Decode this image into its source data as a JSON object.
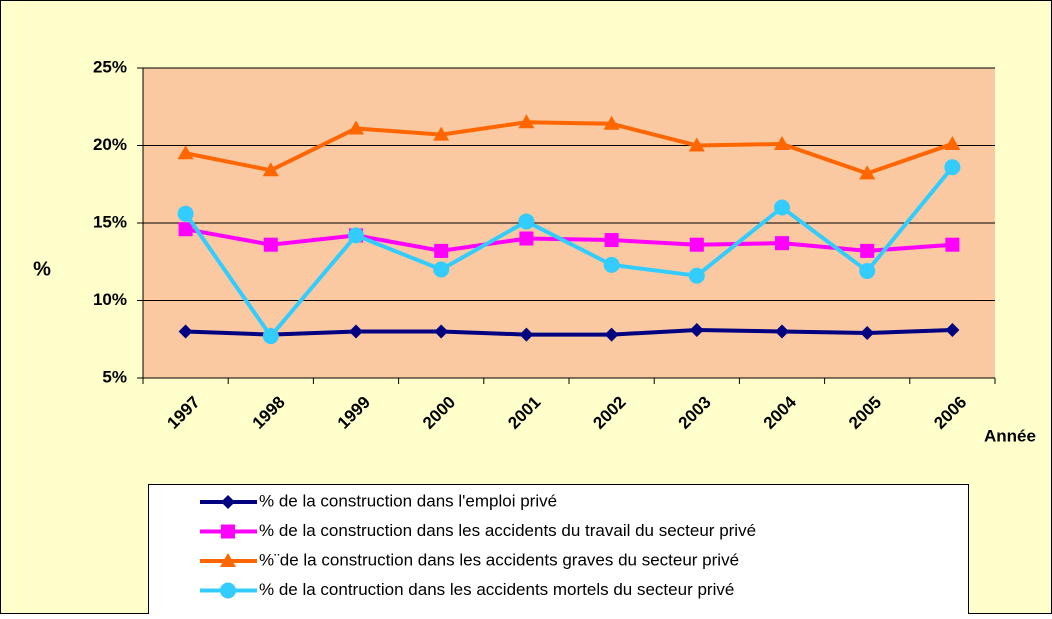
{
  "chart_data": {
    "type": "line",
    "categories": [
      "1997",
      "1998",
      "1999",
      "2000",
      "2001",
      "2002",
      "2003",
      "2004",
      "2005",
      "2006"
    ],
    "xlabel": "Année",
    "ylabel": "%",
    "ylim": [
      5,
      25
    ],
    "yticks": [
      {
        "value": 5,
        "label": "5%"
      },
      {
        "value": 10,
        "label": "10%"
      },
      {
        "value": 15,
        "label": "15%"
      },
      {
        "value": 20,
        "label": "20%"
      },
      {
        "value": 25,
        "label": "25%"
      }
    ],
    "grid": true,
    "series": [
      {
        "name": "% de la construction dans l'emploi privé",
        "color": "#000080",
        "marker": "diamond",
        "values": [
          8.0,
          7.8,
          8.0,
          8.0,
          7.8,
          7.8,
          8.1,
          8.0,
          7.9,
          8.1
        ]
      },
      {
        "name": "% de la construction dans les accidents du travail du secteur privé",
        "color": "#FF00FF",
        "marker": "square",
        "values": [
          14.6,
          13.6,
          14.2,
          13.2,
          14.0,
          13.9,
          13.6,
          13.7,
          13.2,
          13.6
        ]
      },
      {
        "name": "%¨de la construction dans les accidents graves du secteur privé",
        "color": "#FF6600",
        "marker": "triangle",
        "values": [
          19.5,
          18.4,
          21.1,
          20.7,
          21.5,
          21.4,
          20.0,
          20.1,
          18.2,
          20.1
        ]
      },
      {
        "name": "% de la contruction dans les accidents mortels du secteur privé",
        "color": "#33CCFF",
        "marker": "circle",
        "values": [
          15.6,
          7.7,
          14.2,
          12.0,
          15.1,
          12.3,
          11.6,
          16.0,
          11.9,
          18.6
        ]
      }
    ],
    "legend": "bottom"
  }
}
